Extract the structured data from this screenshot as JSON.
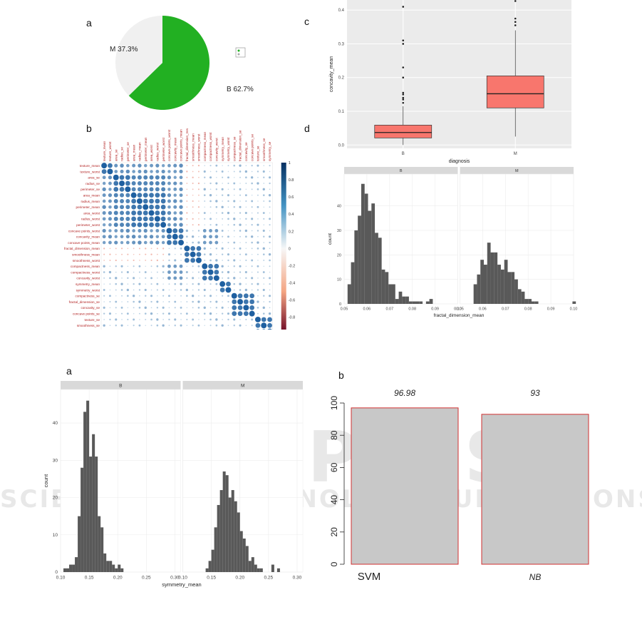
{
  "labels": {
    "top_a": "a",
    "top_b": "b",
    "top_c": "c",
    "top_d": "d",
    "bottom_a": "a",
    "bottom_b": "b"
  },
  "watermark": {
    "line1": "SCITEPRESS",
    "line2": "SCIENCE AND TECHNOLOGY PUBLICATIONS"
  },
  "colors": {
    "pie_B": "#22b022",
    "pie_M": "#f0f0f0",
    "box": "#f8766d",
    "hist": "#595959",
    "facet": "#d9d9d9",
    "bar": "#c8c8c8",
    "bar_border": "#d03030",
    "corr_pos": "#1f5f9f",
    "corr_neg": "#b2182b"
  },
  "chart_data": [
    {
      "type": "pie",
      "slices": [
        {
          "label": "M 37.3%",
          "value": 37.3
        },
        {
          "label": "B 62.7%",
          "value": 62.7
        }
      ],
      "legend": "right"
    },
    {
      "type": "heatmap",
      "variables": [
        "texture_mean",
        "texture_worst",
        "area_se",
        "radius_se",
        "perimeter_se",
        "area_mean",
        "radius_mean",
        "perimeter_mean",
        "area_worst",
        "radius_worst",
        "perimeter_worst",
        "concave points_worst",
        "concavity_mean",
        "concave points_mean",
        "fractal_dimension_mean",
        "smoothness_mean",
        "smoothness_worst",
        "compactness_mean",
        "compactness_worst",
        "concavity_worst",
        "symmetry_mean",
        "symmetry_worst",
        "compactness_se",
        "fractal_dimension_se",
        "concavity_se",
        "concave points_se",
        "texture_se",
        "smoothness_se",
        "symmetry_se"
      ],
      "colorbar_ticks": [
        "1",
        "0.8",
        "0.6",
        "0.4",
        "0.2",
        "0",
        "-0.2",
        "-0.4",
        "-0.6",
        "-0.8",
        "-1"
      ],
      "legend": "right"
    },
    {
      "type": "box",
      "xlabel": "diagnosis",
      "ylabel": "concavity_mean",
      "categories": [
        "B",
        "M"
      ],
      "yticks": [
        "0.0",
        "0.1",
        "0.2",
        "0.3",
        "0.4"
      ],
      "ylim": [
        -0.01,
        0.43
      ],
      "boxes": [
        {
          "name": "B",
          "min": 0.0,
          "q1": 0.021,
          "median": 0.037,
          "q3": 0.059,
          "max": 0.115,
          "outliers": [
            0.125,
            0.135,
            0.14,
            0.15,
            0.155,
            0.2,
            0.23,
            0.3,
            0.31,
            0.41
          ]
        },
        {
          "name": "M",
          "min": 0.025,
          "q1": 0.11,
          "median": 0.152,
          "q3": 0.205,
          "max": 0.34,
          "outliers": [
            0.355,
            0.365,
            0.375,
            0.427
          ]
        }
      ]
    },
    {
      "type": "bar",
      "subtype": "histogram",
      "xlabel": "fractal_dimension_mean",
      "ylabel": "count",
      "facets": [
        "B",
        "M"
      ],
      "xticks": [
        "0.05",
        "0.06",
        "0.07",
        "0.08",
        "0.09",
        "0.10"
      ],
      "yticks": [
        "0",
        "10",
        "20",
        "30",
        "40"
      ],
      "xlim": [
        0.05,
        0.1
      ],
      "ylim": [
        0,
        53
      ],
      "bin_start": 0.0515,
      "bin_width": 0.0015,
      "series": [
        {
          "name": "B",
          "values": [
            8,
            17,
            30,
            36,
            49,
            45,
            38,
            41,
            29,
            27,
            14,
            13,
            8,
            8,
            2,
            5,
            3,
            3,
            1,
            1,
            1,
            1,
            0,
            1,
            2,
            0,
            0,
            0,
            0,
            0,
            0,
            0,
            0
          ]
        },
        {
          "name": "M",
          "values": [
            0,
            0,
            0,
            8,
            12,
            18,
            16,
            25,
            21,
            21,
            16,
            14,
            18,
            13,
            13,
            10,
            6,
            5,
            2,
            2,
            1,
            1,
            0,
            0,
            0,
            0,
            0,
            0,
            0,
            0,
            0,
            0,
            1
          ]
        }
      ]
    },
    {
      "type": "bar",
      "subtype": "histogram",
      "xlabel": "symmetry_mean",
      "ylabel": "count",
      "facets": [
        "B",
        "M"
      ],
      "xticks": [
        "0.10",
        "0.15",
        "0.20",
        "0.25",
        "0.30"
      ],
      "yticks": [
        "0",
        "10",
        "20",
        "30",
        "40"
      ],
      "xlim": [
        0.1,
        0.31
      ],
      "ylim": [
        0,
        49
      ],
      "bin_start": 0.105,
      "bin_width": 0.005,
      "series": [
        {
          "name": "B",
          "values": [
            1,
            1,
            2,
            2,
            4,
            15,
            28,
            43,
            46,
            31,
            37,
            31,
            15,
            12,
            5,
            3,
            3,
            2,
            1,
            2,
            1,
            0,
            0,
            0,
            0,
            0,
            0,
            0,
            0,
            0,
            0,
            0,
            0,
            0,
            0,
            0,
            0,
            0,
            0,
            0,
            0,
            0
          ]
        },
        {
          "name": "M",
          "values": [
            0,
            0,
            0,
            0,
            0,
            0,
            0,
            1,
            3,
            6,
            12,
            18,
            22,
            27,
            26,
            20,
            22,
            19,
            16,
            11,
            9,
            7,
            3,
            4,
            2,
            1,
            1,
            0,
            0,
            0,
            2,
            0,
            1,
            0,
            0,
            0,
            0,
            0,
            0,
            0,
            0,
            0
          ]
        }
      ]
    },
    {
      "type": "bar",
      "categories": [
        "SVM",
        "NB"
      ],
      "values": [
        96.98,
        93
      ],
      "data_labels": [
        "96.98",
        "93"
      ],
      "yticks": [
        "0",
        "20",
        "40",
        "60",
        "80",
        "100"
      ],
      "ylim": [
        0,
        100
      ]
    }
  ]
}
